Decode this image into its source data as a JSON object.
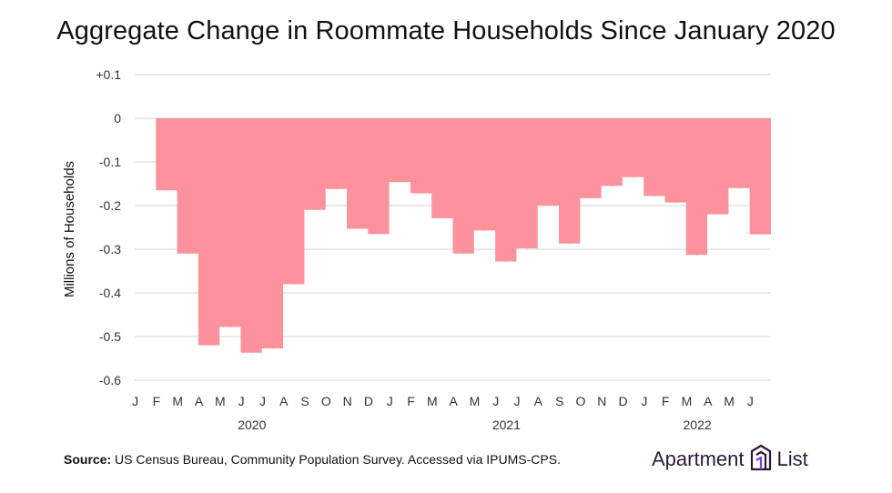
{
  "chart_data": {
    "type": "area",
    "title": "Aggregate Change in Roommate Households Since January 2020",
    "ylabel": "Millions of Households",
    "xlabel": "",
    "ylim": [
      -0.6,
      0.1
    ],
    "yticks": [
      0.1,
      0,
      -0.1,
      -0.2,
      -0.3,
      -0.4,
      -0.5,
      -0.6
    ],
    "ytick_labels": [
      "+0.1",
      "0",
      "-0.1",
      "-0.2",
      "-0.3",
      "-0.4",
      "-0.5",
      "-0.6"
    ],
    "categories": [
      "J",
      "F",
      "M",
      "A",
      "M",
      "J",
      "J",
      "A",
      "S",
      "O",
      "N",
      "D",
      "J",
      "F",
      "M",
      "A",
      "M",
      "J",
      "J",
      "A",
      "S",
      "O",
      "N",
      "D",
      "J",
      "F",
      "M",
      "A",
      "M",
      "J"
    ],
    "year_labels": [
      {
        "label": "2020",
        "start_index": 0,
        "end_index": 11
      },
      {
        "label": "2021",
        "start_index": 12,
        "end_index": 23
      },
      {
        "label": "2022",
        "start_index": 24,
        "end_index": 29
      }
    ],
    "values": [
      0,
      -0.165,
      -0.31,
      -0.52,
      -0.478,
      -0.537,
      -0.527,
      -0.38,
      -0.21,
      -0.162,
      -0.253,
      -0.265,
      -0.146,
      -0.172,
      -0.229,
      -0.31,
      -0.257,
      -0.328,
      -0.298,
      -0.2,
      -0.287,
      -0.183,
      -0.155,
      -0.135,
      -0.178,
      -0.193,
      -0.313,
      -0.22,
      -0.16,
      -0.266
    ],
    "fill_color": "#fb929c",
    "grid": true
  },
  "source": {
    "label": "Source:",
    "text": "US Census Bureau, Community Population Survey. Accessed via IPUMS-CPS."
  },
  "brand": {
    "left_word": "Apartment",
    "right_word": "List",
    "logo_icon": "apartment-list-logo-icon",
    "color": "#2b1a3a",
    "accent": "#7a3cff"
  }
}
